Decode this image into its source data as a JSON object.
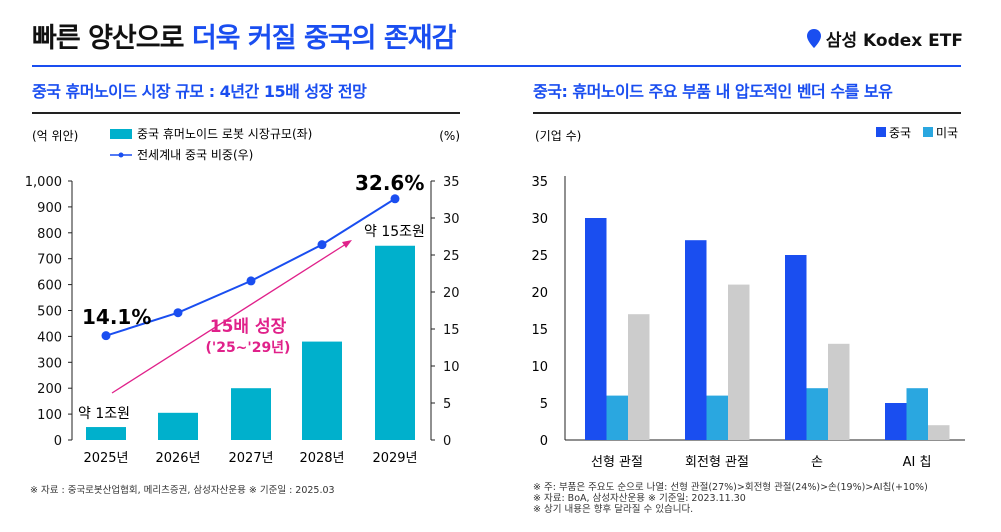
{
  "header": {
    "title_main": "빠른 양산으로 ",
    "title_highlight": "더욱 커질 중국의 존재감",
    "brand": "삼성 Kodex ETF",
    "brand_color": "#1a4ef0"
  },
  "chart_data": [
    {
      "type": "bar+line",
      "title": "중국 휴머노이드 시장 규모 : 4년간 15배 성장 전망",
      "categories": [
        "2025년",
        "2026년",
        "2027년",
        "2028년",
        "2029년"
      ],
      "ylabel_left": "(억 위안)",
      "ylabel_right": "(%)",
      "ylim_left": [
        0,
        1000
      ],
      "yticks_left": [
        "0",
        "100",
        "200",
        "300",
        "400",
        "500",
        "600",
        "700",
        "800",
        "900",
        "1,000"
      ],
      "ylim_right": [
        0,
        35
      ],
      "yticks_right": [
        "0",
        "5",
        "10",
        "15",
        "20",
        "25",
        "30",
        "35"
      ],
      "series": [
        {
          "name": "중국 휴머노이드 로봇 시장규모(좌)",
          "type": "bar",
          "axis": "left",
          "color": "#00b0cc",
          "values": [
            50,
            105,
            200,
            380,
            750
          ]
        },
        {
          "name": "전세계내 중국 비중(우)",
          "type": "line",
          "axis": "right",
          "color": "#1a4ef0",
          "values": [
            14.1,
            17.2,
            21.5,
            26.4,
            32.6
          ]
        }
      ],
      "annotations": {
        "first_pct": "14.1%",
        "last_pct": "32.6%",
        "first_bar": "약 1조원",
        "last_bar": "약 15조원",
        "growth": "15배 성장",
        "growth_period": "('25~'29년)",
        "growth_color": "#e0218a"
      },
      "note": "※ 자료 : 중국로봇산업협회, 메리츠증권, 삼성자산운용  ※ 기준일 : 2025.03"
    },
    {
      "type": "bar",
      "title": "중국: 휴머노이드 주요 부품 내 압도적인 벤더 수를 보유",
      "categories": [
        "선형 관절",
        "회전형 관절",
        "손",
        "AI 칩"
      ],
      "ylabel": "(기업 수)",
      "ylim": [
        0,
        35
      ],
      "yticks": [
        "0",
        "5",
        "10",
        "15",
        "20",
        "25",
        "30",
        "35"
      ],
      "legend_position": "top-right",
      "series": [
        {
          "name": "중국",
          "color": "#1a4ef0",
          "values": [
            30,
            27,
            25,
            5
          ]
        },
        {
          "name": "미국",
          "color": "#2aa7e0",
          "values": [
            6,
            6,
            7,
            7
          ]
        },
        {
          "color": "#cccccc",
          "values": [
            17,
            21,
            13,
            2
          ]
        }
      ],
      "notes": [
        "※ 주: 부품은 주요도 순으로 나열: 선형 관절(27%)>회전형 관절(24%)>손(19%)>AI칩(+10%)",
        "※ 자료: BoA, 삼성자산운용 ※ 기준일: 2023.11.30",
        "※ 상기 내용은 향후 달라질 수 있습니다."
      ]
    }
  ]
}
